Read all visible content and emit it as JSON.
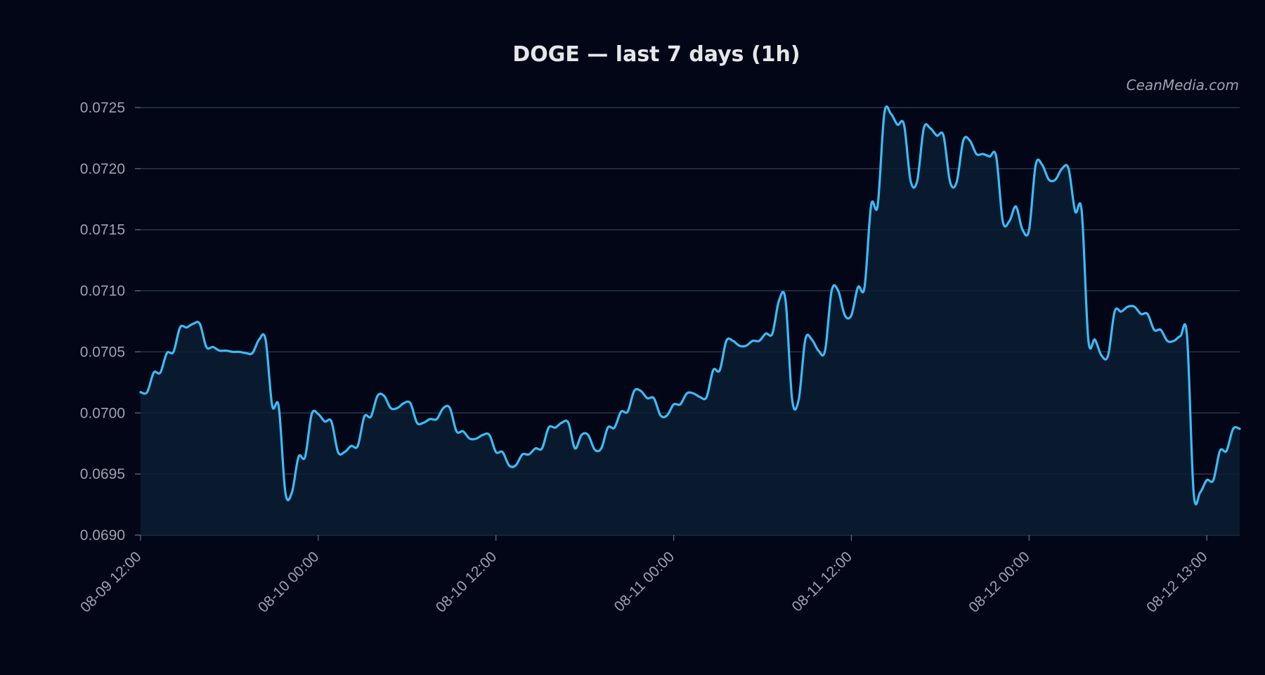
{
  "chart_data": {
    "type": "line",
    "title": "DOGE — last 7 days (1h)",
    "watermark": "CeanMedia.com",
    "xlabel": "",
    "ylabel": "",
    "ylim": [
      0.069,
      0.0725
    ],
    "grid": true,
    "colors": {
      "line": "#38bdf8",
      "area": "#0c1e33",
      "grid": "#334155",
      "background": "#020617"
    },
    "yticks": [
      {
        "value": 0.069,
        "label": "0.0690"
      },
      {
        "value": 0.0695,
        "label": "0.0695"
      },
      {
        "value": 0.07,
        "label": "0.0700"
      },
      {
        "value": 0.0705,
        "label": "0.0705"
      },
      {
        "value": 0.071,
        "label": "0.0710"
      },
      {
        "value": 0.0715,
        "label": "0.0715"
      },
      {
        "value": 0.072,
        "label": "0.0720"
      },
      {
        "value": 0.0725,
        "label": "0.0725"
      }
    ],
    "xticks": [
      "08-09 12:00",
      "08-10 00:00",
      "08-10 12:00",
      "08-11 00:00",
      "08-11 12:00",
      "08-12 00:00",
      "08-12 13:00"
    ],
    "series": [
      {
        "values": [
          0.07017,
          0.07017,
          0.07033,
          0.07033,
          0.07049,
          0.0705,
          0.0707,
          0.0707,
          0.07073,
          0.07073,
          0.07054,
          0.07054,
          0.07051,
          0.07051,
          0.0705,
          0.0705,
          0.07049,
          0.07049,
          0.0706,
          0.0706,
          0.07006,
          0.07005,
          0.06935,
          0.06935,
          0.06964,
          0.06964,
          0.06999,
          0.06999,
          0.06993,
          0.06993,
          0.06968,
          0.06968,
          0.06973,
          0.06973,
          0.06997,
          0.06997,
          0.07014,
          0.07014,
          0.07004,
          0.07004,
          0.07008,
          0.07008,
          0.06992,
          0.06992,
          0.06995,
          0.06995,
          0.07004,
          0.07004,
          0.06985,
          0.06985,
          0.06979,
          0.06979,
          0.06982,
          0.06982,
          0.06968,
          0.06968,
          0.06957,
          0.06957,
          0.06966,
          0.06966,
          0.06971,
          0.06971,
          0.06988,
          0.06988,
          0.06992,
          0.06992,
          0.06971,
          0.06982,
          0.06982,
          0.0697,
          0.06971,
          0.06988,
          0.06988,
          0.07001,
          0.07001,
          0.07018,
          0.07018,
          0.07012,
          0.07012,
          0.06998,
          0.06998,
          0.07007,
          0.07007,
          0.07016,
          0.07016,
          0.07013,
          0.07013,
          0.07035,
          0.07035,
          0.07059,
          0.07059,
          0.07055,
          0.07055,
          0.07059,
          0.07059,
          0.07065,
          0.07065,
          0.07092,
          0.07092,
          0.07011,
          0.07011,
          0.0706,
          0.0706,
          0.07051,
          0.07051,
          0.071,
          0.071,
          0.0708,
          0.0708,
          0.07103,
          0.07103,
          0.0717,
          0.0717,
          0.07245,
          0.07245,
          0.07236,
          0.07236,
          0.0719,
          0.0719,
          0.07233,
          0.07233,
          0.07227,
          0.07227,
          0.07189,
          0.07189,
          0.07223,
          0.07223,
          0.07212,
          0.07212,
          0.0721,
          0.0721,
          0.07157,
          0.07157,
          0.07169,
          0.0715,
          0.0715,
          0.07203,
          0.07203,
          0.07191,
          0.07191,
          0.072,
          0.072,
          0.07165,
          0.07165,
          0.0706,
          0.0706,
          0.07047,
          0.07047,
          0.07083,
          0.07083,
          0.07087,
          0.07087,
          0.07081,
          0.07081,
          0.07068,
          0.07068,
          0.07059,
          0.07059,
          0.07063,
          0.07063,
          0.06935,
          0.06935,
          0.06945,
          0.06945,
          0.06969,
          0.06969,
          0.06987,
          0.06987
        ]
      }
    ]
  }
}
